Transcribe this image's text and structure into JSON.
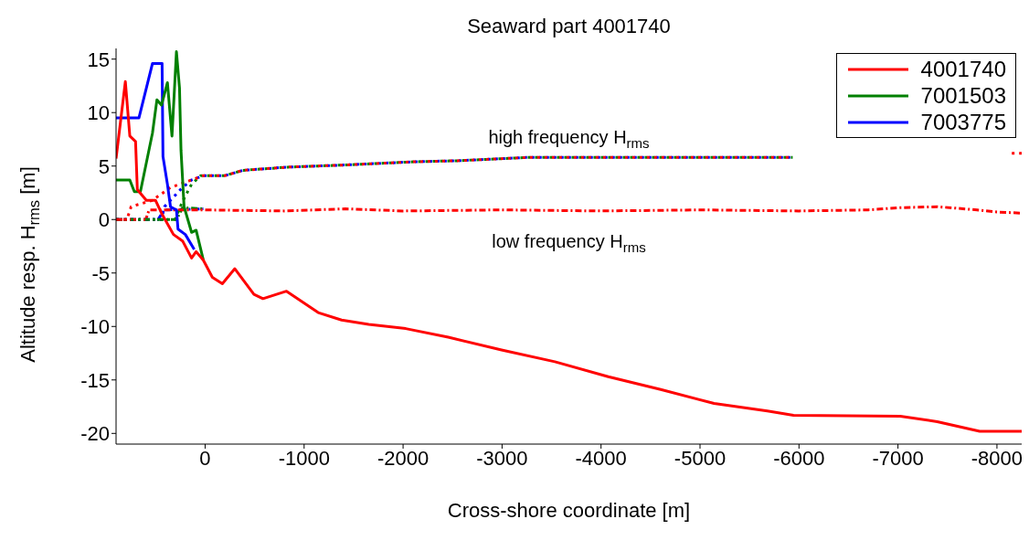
{
  "chart_data": {
    "type": "line",
    "title": "Seaward part 4001740",
    "xlabel": "Cross-shore coordinate [m]",
    "ylabel": "Altitude resp. H$_{rms}$ [m]",
    "xlim": [
      900,
      -8250
    ],
    "xticks": [
      0,
      -1000,
      -2000,
      -3000,
      -4000,
      -5000,
      -6000,
      -7000,
      -8000
    ],
    "ylim": [
      -21,
      16
    ],
    "yticks": [
      -20,
      -15,
      -10,
      -5,
      0,
      5,
      10,
      15
    ],
    "grid": false,
    "legend": "top right",
    "marker": "none",
    "annotations": [
      "high frequency H$_{rms}$",
      "low frequency H$_{rms}$"
    ],
    "series": [
      {
        "name": "4001740",
        "color": "#ff0000",
        "line_style": "solid",
        "x": [
          900,
          806,
          761,
          703,
          685,
          594,
          502,
          441,
          320,
          228,
          137,
          91,
          18,
          -73,
          -174,
          -300,
          -493,
          -584,
          -822,
          -1142,
          -1379,
          -1653,
          -2027,
          -2456,
          -2995,
          -3534,
          -4073,
          -4603,
          -5142,
          -5680,
          -5945,
          -7023,
          -7397,
          -7826,
          -8250
        ],
        "values": [
          5.7,
          12.9,
          7.8,
          7.3,
          2.8,
          1.8,
          1.8,
          0.6,
          -1.4,
          -2.0,
          -3.6,
          -3.0,
          -3.8,
          -5.4,
          -6.0,
          -4.6,
          -7.0,
          -7.4,
          -6.7,
          -8.7,
          -9.4,
          -9.8,
          -10.2,
          -11.0,
          -12.2,
          -13.3,
          -14.7,
          -15.9,
          -17.2,
          -17.9,
          -18.3,
          -18.4,
          -18.9,
          -19.8,
          -19.8
        ]
      },
      {
        "name": "7001503",
        "color": "#008000",
        "line_style": "solid",
        "x": [
          900,
          761,
          715,
          654,
          532,
          487,
          441,
          381,
          335,
          290,
          259,
          244,
          213,
          137,
          91,
          18
        ],
        "values": [
          3.7,
          3.7,
          2.6,
          2.6,
          8.1,
          11.2,
          10.7,
          12.8,
          7.8,
          15.7,
          12.3,
          6.5,
          1.2,
          -1.2,
          -1.0,
          -3.8
        ]
      },
      {
        "name": "7003775",
        "color": "#0000ff",
        "line_style": "solid",
        "x": [
          900,
          669,
          532,
          435,
          426,
          381,
          350,
          290,
          274,
          200,
          110
        ],
        "values": [
          9.5,
          9.5,
          14.6,
          14.6,
          5.9,
          3.3,
          1.2,
          0.9,
          -0.9,
          -1.4,
          -2.8
        ]
      },
      {
        "color": "#ff0000",
        "line_style": "dotted",
        "x": [
          900,
          790,
          748,
          532,
          350,
          167,
          18,
          -198,
          -381,
          -837,
          -1416,
          -2110,
          -2548,
          -3242,
          -4200,
          -5936,
          -7000,
          -8150,
          -8250
        ],
        "values": [
          0,
          0,
          1.2,
          1.8,
          3.0,
          3.6,
          4.1,
          4.1,
          4.6,
          4.9,
          5.1,
          5.4,
          5.5,
          5.8,
          5.8,
          5.8,
          null,
          6.2,
          6.2
        ]
      },
      {
        "color": "#008000",
        "line_style": "dotted",
        "x": [
          900,
          304,
          228,
          137,
          46,
          -198,
          -381,
          -837,
          -1416,
          -2110,
          -2548,
          -3242,
          -4200,
          -5936
        ],
        "values": [
          0,
          0,
          1.7,
          3.3,
          4.1,
          4.1,
          4.6,
          4.9,
          5.1,
          5.4,
          5.5,
          5.8,
          5.8,
          5.8
        ]
      },
      {
        "color": "#0000ff",
        "line_style": "dotted",
        "x": [
          900,
          441,
          411,
          228,
          137,
          18,
          -198,
          -381,
          -837,
          -1416,
          -2110,
          -2548,
          -3242,
          -4200,
          -5936
        ],
        "values": [
          0,
          0,
          1.2,
          3.0,
          3.7,
          4.1,
          4.1,
          4.6,
          4.9,
          5.1,
          5.4,
          5.5,
          5.8,
          5.8,
          5.8
        ]
      },
      {
        "color": "#ff0000",
        "line_style": "dashdot",
        "x": [
          900,
          600,
          566,
          18,
          -800,
          -1416,
          -2000,
          -3000,
          -4000,
          -5000,
          -6000,
          -6700,
          -7000,
          -7400,
          -7800,
          -8000,
          -8250
        ],
        "values": [
          0,
          0,
          0.9,
          0.9,
          0.8,
          1.0,
          0.8,
          0.9,
          0.8,
          0.9,
          0.8,
          0.9,
          1.1,
          1.2,
          0.9,
          0.7,
          0.6
        ]
      },
      {
        "color": "#008000",
        "line_style": "dashdot",
        "x": [
          900,
          290,
          228,
          18
        ],
        "values": [
          0,
          0,
          1.1,
          1.0
        ]
      },
      {
        "color": "#0000ff",
        "line_style": "dashdot",
        "x": [
          900,
          477,
          411,
          18
        ],
        "values": [
          0,
          0,
          0.9,
          1.0
        ]
      }
    ]
  }
}
